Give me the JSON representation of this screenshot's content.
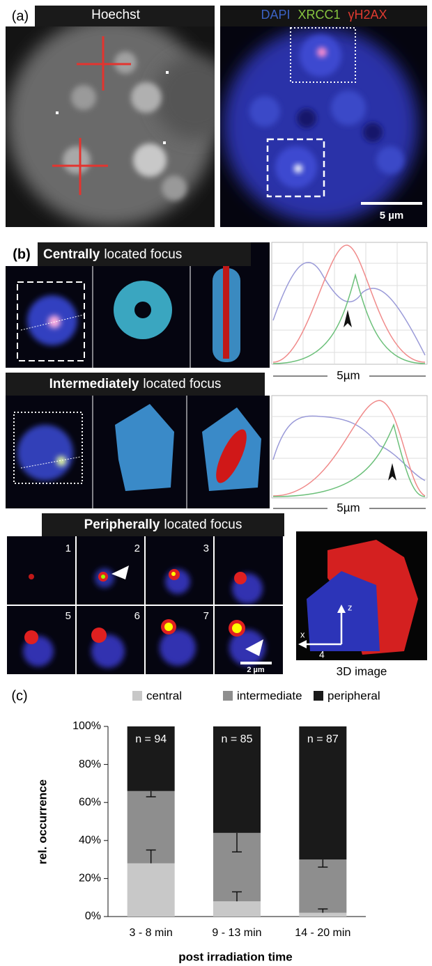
{
  "panel_a": {
    "label": "(a)",
    "left_title": "Hoechst",
    "right_title": [
      "DAPI",
      "XRCC1",
      "γH2AX"
    ],
    "scale": "5 µm"
  },
  "panel_b": {
    "label": "(b)",
    "rows": [
      {
        "bold": "Centrally",
        "rest": "located focus",
        "scale": "5µm"
      },
      {
        "bold": "Intermediately",
        "rest": "located focus",
        "scale": "5µm"
      },
      {
        "bold": "Peripherally",
        "rest": "located focus"
      }
    ],
    "tiles": [
      "1",
      "2",
      "3",
      "5",
      "6",
      "7"
    ],
    "tile_scale": "2 µm",
    "axes": [
      "z",
      "x"
    ],
    "image_3d_label": "4",
    "image_3d_caption": "3D image"
  },
  "chart_data": {
    "type": "stacked_bar",
    "label": "(c)",
    "categories": [
      "3 - 8 min",
      "9 - 13 min",
      "14 - 20 min"
    ],
    "series": [
      {
        "name": "central",
        "color": "#c8c8c8",
        "values": [
          28,
          8,
          2
        ],
        "errors": [
          7,
          5,
          2
        ]
      },
      {
        "name": "intermediate",
        "color": "#8e8e8e",
        "values": [
          38,
          36,
          28
        ],
        "errors": [
          3,
          10,
          4
        ]
      },
      {
        "name": "peripheral",
        "color": "#1a1a1a",
        "values": [
          34,
          56,
          70
        ]
      }
    ],
    "annotations": [
      "n = 94",
      "n = 85",
      "n = 87"
    ],
    "ylim": [
      0,
      100
    ],
    "yticks": [
      {
        "value": 0,
        "label": "0%"
      },
      {
        "value": 20,
        "label": "20%"
      },
      {
        "value": 40,
        "label": "40%"
      },
      {
        "value": 60,
        "label": "60%"
      },
      {
        "value": 80,
        "label": "80%"
      },
      {
        "value": 100,
        "label": "100%"
      }
    ],
    "ylabel": "rel. occurrence",
    "xlabel": "post irradiation time"
  }
}
